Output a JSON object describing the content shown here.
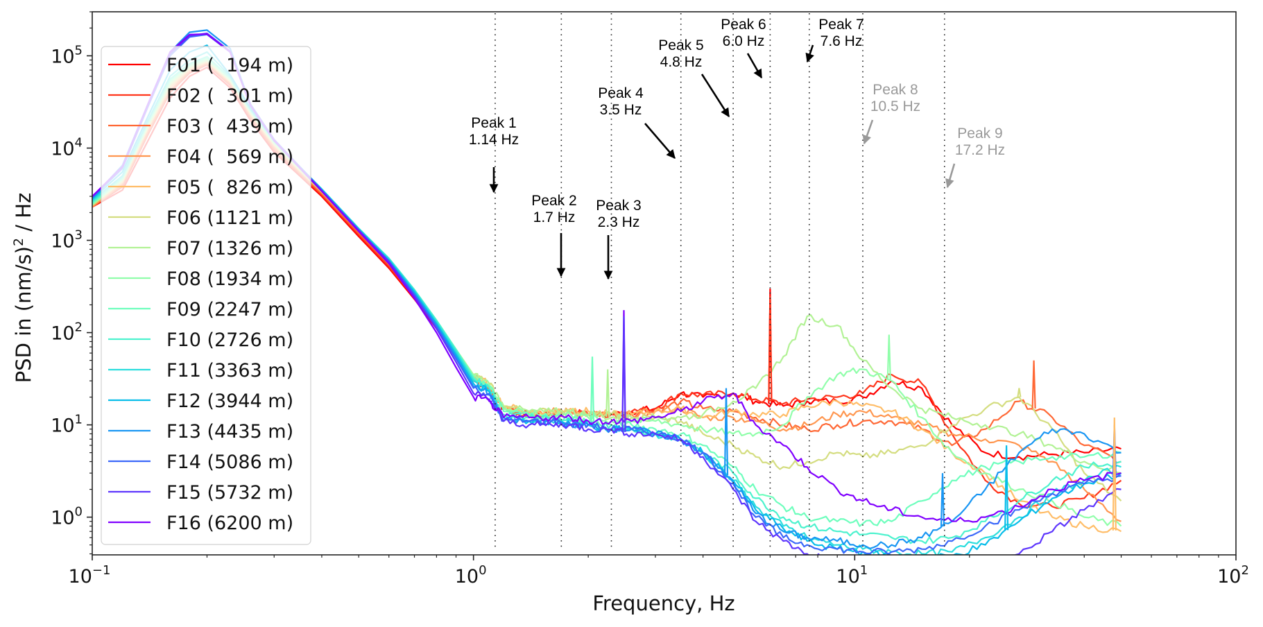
{
  "chart_data": {
    "type": "line",
    "title": "",
    "xlabel": "Frequency, Hz",
    "ylabel_main": "PSD in (nm/s)",
    "ylabel_sup": "2",
    "ylabel_tail": " / Hz",
    "xscale": "log",
    "yscale": "log",
    "xlim": [
      0.1,
      100
    ],
    "ylim": [
      0.39,
      300000
    ],
    "grid": false,
    "legend_position": "upper-left",
    "x_ticks": [
      {
        "value": 0.1,
        "base": "10",
        "exp": "−1"
      },
      {
        "value": 1,
        "base": "10",
        "exp": "0"
      },
      {
        "value": 10,
        "base": "10",
        "exp": "1"
      },
      {
        "value": 100,
        "base": "10",
        "exp": "2"
      }
    ],
    "y_ticks": [
      {
        "value": 1,
        "base": "10",
        "exp": "0"
      },
      {
        "value": 10,
        "base": "10",
        "exp": "1"
      },
      {
        "value": 100,
        "base": "10",
        "exp": "2"
      },
      {
        "value": 1000,
        "base": "10",
        "exp": "3"
      },
      {
        "value": 10000,
        "base": "10",
        "exp": "4"
      },
      {
        "value": 100000,
        "base": "10",
        "exp": "5"
      }
    ],
    "x": [
      0.1,
      0.12,
      0.14,
      0.16,
      0.18,
      0.2,
      0.23,
      0.26,
      0.3,
      0.35,
      0.4,
      0.5,
      0.6,
      0.7,
      0.8,
      0.9,
      1.0,
      1.1,
      1.2,
      1.4,
      1.6,
      1.8,
      2.0,
      2.3,
      2.6,
      3.0,
      3.5,
      4.0,
      4.8,
      5.5,
      6.5,
      7.5,
      9.0,
      10.5,
      12.5,
      15,
      18,
      22,
      27,
      33,
      40,
      50
    ],
    "series": [
      {
        "name": "F01 (  194 m)",
        "color": "#ff0000",
        "values": [
          2300,
          3500,
          12000,
          35000,
          60000,
          75000,
          45000,
          20000,
          9000,
          5000,
          3000,
          1100,
          500,
          230,
          110,
          55,
          30,
          25,
          15,
          13,
          13,
          14,
          13,
          13,
          14,
          15,
          22,
          20,
          22,
          18,
          16,
          18,
          18,
          20,
          30,
          25,
          10,
          5,
          4.5,
          4.8,
          5,
          5.5
        ]
      },
      {
        "name": "F02 (  301 m)",
        "color": "#ff351b",
        "values": [
          2300,
          3800,
          14000,
          40000,
          65000,
          80000,
          48000,
          21000,
          9500,
          5200,
          3100,
          1150,
          520,
          240,
          115,
          58,
          31,
          25,
          15,
          13,
          13,
          14,
          13,
          13,
          14,
          15,
          22,
          21,
          22,
          19,
          17,
          19,
          20,
          22,
          35,
          28,
          8,
          2.5,
          1.4,
          1.3,
          1.6,
          2.5
        ]
      },
      {
        "name": "F03 (  439 m)",
        "color": "#ff6835",
        "values": [
          2300,
          4000,
          15000,
          42000,
          68000,
          82000,
          50000,
          22000,
          10000,
          5400,
          3200,
          1200,
          550,
          250,
          120,
          60,
          32,
          26,
          15,
          13,
          13,
          14,
          13,
          13,
          13,
          14,
          18,
          15,
          14,
          12,
          10,
          9,
          10,
          11,
          11,
          9,
          6,
          9,
          18,
          12,
          6,
          4
        ]
      },
      {
        "name": "F04 (  569 m)",
        "color": "#ff964f",
        "values": [
          2300,
          4200,
          16000,
          45000,
          70000,
          85000,
          52000,
          23000,
          10500,
          5600,
          3300,
          1250,
          580,
          260,
          125,
          62,
          33,
          27,
          16,
          14,
          14,
          14,
          13,
          13,
          13,
          14,
          15,
          12,
          12,
          11,
          9,
          10,
          13,
          14,
          12,
          10,
          8,
          7,
          6,
          4,
          2,
          0.9
        ]
      },
      {
        "name": "F05 (  826 m)",
        "color": "#ffbd68",
        "values": [
          2400,
          4300,
          16500,
          46000,
          72000,
          86000,
          53000,
          23500,
          10800,
          5700,
          3350,
          1270,
          590,
          270,
          130,
          64,
          34,
          28,
          16,
          14,
          14,
          15,
          14,
          13,
          13,
          14,
          15,
          12,
          14,
          13,
          13,
          16,
          18,
          16,
          14,
          9,
          5,
          3,
          1.5,
          1,
          0.8,
          0.7
        ]
      },
      {
        "name": "F06 (1121 m)",
        "color": "#d4dd80",
        "values": [
          2400,
          4400,
          17000,
          48000,
          74000,
          88000,
          54000,
          24000,
          11000,
          5800,
          3400,
          1280,
          600,
          275,
          132,
          65,
          34,
          28,
          16,
          14,
          14,
          14,
          13,
          13,
          12,
          12,
          11,
          8,
          6,
          4.5,
          3.5,
          4,
          5,
          4.5,
          5,
          6,
          10,
          15,
          20,
          9,
          3,
          1.5
        ]
      },
      {
        "name": "F07 (1326 m)",
        "color": "#b2f295",
        "values": [
          2400,
          4500,
          17500,
          50000,
          76000,
          90000,
          55000,
          24500,
          11200,
          5900,
          3450,
          1300,
          610,
          280,
          134,
          66,
          35,
          28,
          16,
          14,
          14,
          14,
          13,
          12,
          12,
          12,
          12,
          13,
          18,
          25,
          55,
          150,
          120,
          50,
          25,
          15,
          12,
          10,
          8,
          6,
          4,
          3
        ]
      },
      {
        "name": "F08 (1934 m)",
        "color": "#90feaa",
        "values": [
          2500,
          4600,
          18000,
          52000,
          78000,
          92000,
          56000,
          25000,
          11400,
          6000,
          3500,
          1320,
          620,
          285,
          135,
          66,
          34,
          27,
          15,
          13,
          13,
          13,
          12,
          11,
          11,
          11,
          10,
          9,
          8,
          8,
          10,
          20,
          35,
          40,
          30,
          12,
          5,
          3,
          2,
          1.5,
          1,
          0.8
        ]
      },
      {
        "name": "F09 (2247 m)",
        "color": "#6efebd",
        "values": [
          2500,
          4700,
          18500,
          54000,
          80000,
          95000,
          57000,
          25500,
          11600,
          6100,
          3550,
          1340,
          630,
          290,
          136,
          66,
          33,
          26,
          14,
          13,
          12,
          12,
          11,
          10,
          10,
          9,
          8,
          6,
          3.5,
          2,
          1.3,
          1,
          0.9,
          0.85,
          0.9,
          1.5,
          2.5,
          3.5,
          4,
          4.5,
          4.5,
          5
        ]
      },
      {
        "name": "F10 (2726 m)",
        "color": "#4cf2ce",
        "values": [
          2600,
          4800,
          19000,
          56000,
          82000,
          98000,
          58000,
          26000,
          11800,
          6200,
          3600,
          1350,
          640,
          292,
          136,
          65,
          32,
          25,
          13,
          12,
          12,
          11,
          10,
          10,
          9,
          8,
          7,
          5,
          3,
          1.6,
          1,
          0.8,
          0.7,
          0.65,
          0.6,
          0.55,
          0.6,
          0.9,
          1.5,
          2.5,
          3.5,
          4
        ]
      },
      {
        "name": "F11 (3363 m)",
        "color": "#2adddd",
        "values": [
          2700,
          5000,
          20000,
          60000,
          90000,
          110000,
          60000,
          26500,
          12000,
          6300,
          3600,
          1340,
          630,
          285,
          130,
          62,
          30,
          24,
          12,
          11,
          11,
          11,
          10,
          9,
          9,
          8,
          7,
          5,
          2.5,
          1.3,
          0.8,
          0.6,
          0.5,
          0.45,
          0.42,
          0.4,
          0.42,
          0.6,
          1.0,
          1.8,
          2.5,
          3.5
        ]
      },
      {
        "name": "F12 (3944 m)",
        "color": "#08bde9",
        "values": [
          2800,
          5500,
          22000,
          70000,
          110000,
          130000,
          62000,
          27000,
          12200,
          6300,
          3550,
          1320,
          610,
          275,
          125,
          58,
          28,
          23,
          12,
          11,
          11,
          10,
          10,
          9,
          9,
          8,
          7,
          5,
          2.5,
          1.2,
          0.75,
          0.55,
          0.45,
          0.42,
          0.38,
          0.36,
          0.38,
          0.5,
          0.9,
          1.6,
          2.3,
          3
        ]
      },
      {
        "name": "F13 (4435 m)",
        "color": "#1996f3",
        "values": [
          2900,
          6500,
          30000,
          110000,
          180000,
          190000,
          120000,
          30000,
          12400,
          6300,
          3500,
          1300,
          600,
          265,
          120,
          55,
          26,
          22,
          11,
          11,
          11,
          10,
          10,
          9,
          9,
          8,
          7,
          5,
          2.4,
          1.1,
          0.7,
          0.6,
          0.55,
          0.5,
          0.5,
          0.6,
          0.9,
          2,
          5,
          9,
          8,
          5
        ]
      },
      {
        "name": "F14 (5086 m)",
        "color": "#3b68f9",
        "values": [
          2900,
          6000,
          28000,
          100000,
          160000,
          170000,
          110000,
          29000,
          12200,
          6200,
          3450,
          1280,
          580,
          255,
          115,
          52,
          25,
          21,
          11,
          11,
          11,
          10,
          10,
          9,
          9,
          8,
          7,
          5,
          2.3,
          1.0,
          0.6,
          0.5,
          0.45,
          0.42,
          0.42,
          0.45,
          0.55,
          0.8,
          1.2,
          1.8,
          2.3,
          2.8
        ]
      },
      {
        "name": "F15 (5732 m)",
        "color": "#5d35fd",
        "values": [
          3000,
          6200,
          29000,
          105000,
          165000,
          175000,
          112000,
          29500,
          12300,
          6250,
          3480,
          1290,
          590,
          250,
          110,
          48,
          22,
          19,
          11,
          10,
          10,
          10,
          9,
          9,
          8,
          8,
          7,
          4.5,
          2,
          0.9,
          0.55,
          0.4,
          0.33,
          0.3,
          0.28,
          0.27,
          0.27,
          0.3,
          0.4,
          0.7,
          1.2,
          2
        ]
      },
      {
        "name": "F16 (6200 m)",
        "color": "#8000ff",
        "values": [
          3000,
          6300,
          30000,
          110000,
          170000,
          172000,
          110000,
          29000,
          12000,
          6100,
          3400,
          1250,
          560,
          235,
          100,
          42,
          20,
          18,
          12,
          12,
          12,
          12,
          11,
          11,
          11,
          12,
          14,
          18,
          22,
          10,
          6,
          3.5,
          2,
          1.5,
          1.2,
          1.0,
          0.9,
          1.0,
          1.3,
          2,
          2.5,
          3
        ]
      }
    ],
    "spikes": [
      {
        "series": 0,
        "x": 6.0,
        "y": 300
      },
      {
        "series": 1,
        "x": 6.0,
        "y": 250
      },
      {
        "series": 2,
        "x": 29.5,
        "y": 50
      },
      {
        "series": 5,
        "x": 27,
        "y": 25
      },
      {
        "series": 7,
        "x": 12.3,
        "y": 95
      },
      {
        "series": 8,
        "x": 2.05,
        "y": 55
      },
      {
        "series": 15,
        "x": 2.48,
        "y": 175
      },
      {
        "series": 14,
        "x": 2.48,
        "y": 150
      },
      {
        "series": 12,
        "x": 17.0,
        "y": 3
      },
      {
        "series": 11,
        "x": 25,
        "y": 6
      },
      {
        "series": 13,
        "x": 48,
        "y": 10
      },
      {
        "series": 4,
        "x": 48,
        "y": 12
      },
      {
        "series": 6,
        "x": 2.25,
        "y": 40
      },
      {
        "series": 12,
        "x": 4.6,
        "y": 25
      }
    ],
    "peak_lines": [
      1.14,
      1.7,
      2.3,
      3.5,
      4.8,
      6.0,
      7.6,
      10.5,
      17.2
    ],
    "annotations": [
      {
        "label": "Peak 1",
        "value": "1.14 Hz",
        "color": "#000000"
      },
      {
        "label": "Peak 2",
        "value": "1.7 Hz",
        "color": "#000000"
      },
      {
        "label": "Peak 3",
        "value": "2.3 Hz",
        "color": "#000000"
      },
      {
        "label": "Peak 4",
        "value": "3.5 Hz",
        "color": "#000000"
      },
      {
        "label": "Peak 5",
        "value": "4.8 Hz",
        "color": "#000000"
      },
      {
        "label": "Peak 6",
        "value": "6.0 Hz",
        "color": "#000000"
      },
      {
        "label": "Peak 7",
        "value": "7.6 Hz",
        "color": "#000000"
      },
      {
        "label": "Peak 8",
        "value": "10.5 Hz",
        "color": "#999999"
      },
      {
        "label": "Peak 9",
        "value": "17.2 Hz",
        "color": "#999999"
      }
    ]
  }
}
